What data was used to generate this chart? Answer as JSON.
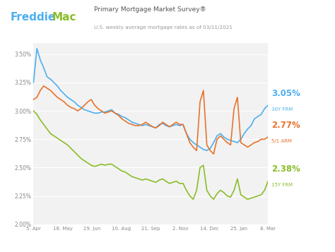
{
  "title_main": "Primary Mortgage Market Survey®",
  "title_sub": "U.S. weekly average mortgage rates as of 03/11/2021",
  "x_labels": [
    "5. Apr",
    "18. May",
    "29. Jun",
    "10. Aug",
    "21. Sep",
    "2. Nov",
    "14. Dec",
    "25. Jan",
    "8. Mar"
  ],
  "ylim": [
    2.0,
    3.6
  ],
  "yticks": [
    2.0,
    2.25,
    2.5,
    2.75,
    3.0,
    3.25,
    3.5
  ],
  "ytick_labels": [
    "2.00%",
    "2.25%",
    "2.50%",
    "2.75%",
    "3.00%",
    "3.25%",
    "3.50%"
  ],
  "color_30yr": "#4DAFEF",
  "color_51arm": "#E8732A",
  "color_15yr": "#8BBD2A",
  "logo_freddie_color": "#4DAFEF",
  "logo_mac_color": "#8BBD2A",
  "logo_roof_color": "#8BBD2A",
  "annotation_30yr_val": "3.05%",
  "annotation_30yr_lbl": "30Y FRM",
  "annotation_51arm_val": "2.77%",
  "annotation_51arm_lbl": "5/1 ARM",
  "annotation_15yr_val": "2.38%",
  "annotation_15yr_lbl": "15Y FRM",
  "background_color": "#ffffff",
  "plot_bg_color": "#f2f2f2",
  "grid_color": "#ffffff",
  "series_30yr": [
    3.25,
    3.55,
    3.45,
    3.38,
    3.3,
    3.28,
    3.25,
    3.22,
    3.18,
    3.15,
    3.12,
    3.1,
    3.08,
    3.05,
    3.03,
    3.01,
    3.0,
    2.99,
    2.98,
    2.98,
    2.99,
    2.99,
    3.0,
    3.01,
    2.98,
    2.97,
    2.95,
    2.94,
    2.92,
    2.9,
    2.89,
    2.88,
    2.87,
    2.88,
    2.87,
    2.86,
    2.85,
    2.88,
    2.89,
    2.87,
    2.86,
    2.87,
    2.88,
    2.87,
    2.88,
    2.8,
    2.75,
    2.72,
    2.7,
    2.68,
    2.66,
    2.65,
    2.67,
    2.72,
    2.78,
    2.8,
    2.77,
    2.75,
    2.74,
    2.73,
    2.72,
    2.75,
    2.8,
    2.84,
    2.87,
    2.93,
    2.95,
    2.97,
    3.02,
    3.05
  ],
  "series_51arm": [
    3.1,
    3.12,
    3.18,
    3.22,
    3.2,
    3.18,
    3.15,
    3.12,
    3.1,
    3.08,
    3.05,
    3.03,
    3.02,
    3.0,
    3.02,
    3.05,
    3.08,
    3.1,
    3.05,
    3.02,
    3.0,
    2.98,
    2.99,
    3.0,
    2.98,
    2.96,
    2.93,
    2.91,
    2.89,
    2.88,
    2.87,
    2.87,
    2.88,
    2.9,
    2.88,
    2.86,
    2.85,
    2.87,
    2.9,
    2.88,
    2.86,
    2.88,
    2.9,
    2.88,
    2.88,
    2.8,
    2.72,
    2.68,
    2.65,
    3.08,
    3.18,
    2.7,
    2.65,
    2.62,
    2.75,
    2.78,
    2.75,
    2.72,
    2.7,
    3.02,
    3.12,
    2.72,
    2.7,
    2.68,
    2.7,
    2.72,
    2.73,
    2.75,
    2.75,
    2.77
  ],
  "series_15yr": [
    3.0,
    2.97,
    2.92,
    2.88,
    2.84,
    2.8,
    2.78,
    2.76,
    2.74,
    2.72,
    2.7,
    2.67,
    2.64,
    2.61,
    2.58,
    2.56,
    2.54,
    2.52,
    2.51,
    2.52,
    2.53,
    2.52,
    2.53,
    2.53,
    2.51,
    2.49,
    2.47,
    2.46,
    2.44,
    2.42,
    2.41,
    2.4,
    2.39,
    2.4,
    2.39,
    2.38,
    2.37,
    2.39,
    2.4,
    2.38,
    2.36,
    2.37,
    2.38,
    2.36,
    2.36,
    2.3,
    2.25,
    2.22,
    2.3,
    2.5,
    2.52,
    2.3,
    2.25,
    2.22,
    2.27,
    2.3,
    2.28,
    2.25,
    2.24,
    2.3,
    2.4,
    2.26,
    2.24,
    2.22,
    2.23,
    2.24,
    2.25,
    2.26,
    2.3,
    2.38
  ]
}
